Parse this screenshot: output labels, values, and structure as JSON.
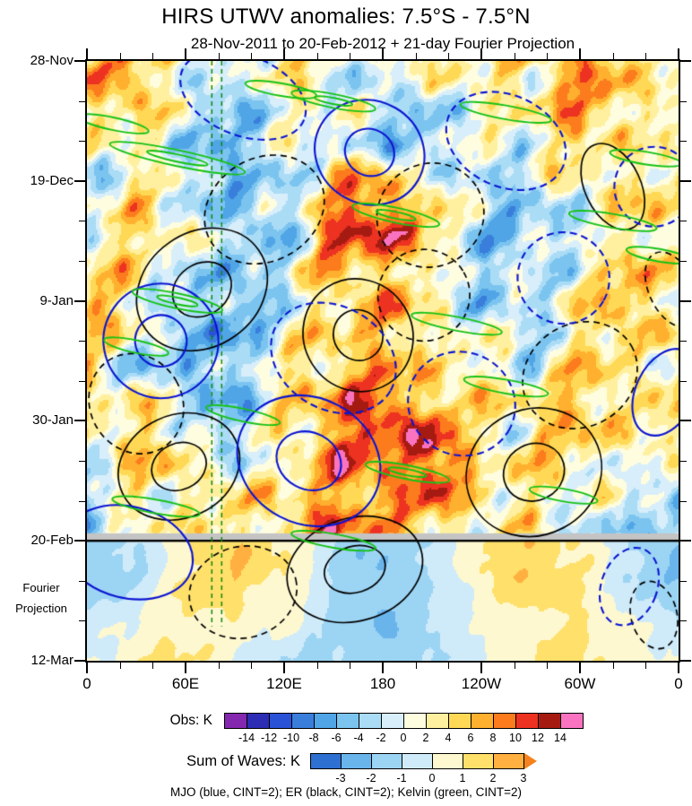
{
  "title": "HIRS UTWV anomalies: 7.5°S - 7.5°N",
  "subtitle": "28-Nov-2011 to 20-Feb-2012 + 21-day Fourier Projection",
  "caption": "MJO (blue, CINT=2); ER (black, CINT=2); Kelvin (green, CINT=2)",
  "axes": {
    "x": {
      "range_deg": [
        0,
        360
      ],
      "major_ticks": [
        {
          "deg": 0,
          "label": "0"
        },
        {
          "deg": 60,
          "label": "60E"
        },
        {
          "deg": 120,
          "label": "120E"
        },
        {
          "deg": 180,
          "label": "180"
        },
        {
          "deg": 240,
          "label": "120W"
        },
        {
          "deg": 300,
          "label": "60W"
        },
        {
          "deg": 360,
          "label": "0"
        }
      ],
      "minor_step_deg": 20
    },
    "y": {
      "range_days": [
        0,
        105
      ],
      "major_ticks": [
        {
          "day": 0,
          "label": "28-Nov"
        },
        {
          "day": 21,
          "label": "19-Dec"
        },
        {
          "day": 42,
          "label": "9-Jan"
        },
        {
          "day": 63,
          "label": "30-Jan"
        },
        {
          "day": 84,
          "label": "20-Feb"
        },
        {
          "day": 105,
          "label": "12-Mar"
        }
      ],
      "minor_step_days": 7,
      "side_note": [
        "Fourier",
        "Projection"
      ]
    }
  },
  "colorbars": [
    {
      "label": "Obs: K",
      "tick_values": [
        -14,
        -12,
        -10,
        -8,
        -6,
        -4,
        -2,
        0,
        2,
        4,
        6,
        8,
        10,
        12,
        14
      ],
      "colors": [
        "#8428b0",
        "#2c2cb4",
        "#2a52d6",
        "#3a7edc",
        "#50a5e6",
        "#7cc4f0",
        "#aadcf6",
        "#d8eefa",
        "#fffde0",
        "#fff0a0",
        "#ffd955",
        "#ffb02e",
        "#fb7b1d",
        "#ed3221",
        "#a51b12",
        "#f973c0"
      ],
      "right_arrow": false
    },
    {
      "label": "Sum of Waves: K",
      "tick_values": [
        -3,
        -2,
        -1,
        0,
        1,
        2,
        3
      ],
      "colors": [
        "#2e6fd2",
        "#6ab4ec",
        "#9cd4f4",
        "#cfebfa",
        "#fef8d0",
        "#ffe06a",
        "#ffb040",
        "#f5821e"
      ],
      "right_arrow": true
    }
  ],
  "chart_data": {
    "type": "heatmap",
    "units": "K",
    "lon_grid_deg": [
      0,
      30,
      60,
      90,
      120,
      150,
      180,
      210,
      240,
      270,
      300,
      330,
      360
    ],
    "day_grid": [
      0,
      7.5,
      15,
      22.5,
      30,
      37.5,
      45,
      52.5,
      60,
      67.5,
      75,
      82.5,
      90,
      97.5,
      105
    ],
    "anomaly_grid_K": [
      [
        4,
        8,
        0,
        -1,
        3,
        1,
        -1,
        4,
        2,
        5,
        7,
        4,
        2
      ],
      [
        3,
        8,
        -2,
        -4,
        1,
        2,
        -4,
        -2,
        1,
        3,
        8,
        5,
        3
      ],
      [
        1,
        2,
        -3,
        -5,
        -2,
        2,
        -5,
        -3,
        -1,
        2,
        4,
        2,
        1
      ],
      [
        -2,
        3,
        -1,
        -6,
        -3,
        6,
        9,
        2,
        -2,
        -4,
        2,
        5,
        2
      ],
      [
        2,
        5,
        2,
        -4,
        -4,
        10,
        13,
        5,
        -3,
        -5,
        -2,
        3,
        2
      ],
      [
        4,
        2,
        -2,
        -5,
        -1,
        5,
        6,
        1,
        -4,
        -2,
        2,
        6,
        3
      ],
      [
        6,
        4,
        -5,
        -6,
        -2,
        4,
        7,
        3,
        -2,
        -3,
        3,
        6,
        4
      ],
      [
        2,
        -2,
        -6,
        -4,
        2,
        6,
        5,
        4,
        2,
        -2,
        4,
        3,
        2
      ],
      [
        3,
        4,
        -3,
        -5,
        3,
        8,
        11,
        6,
        3,
        4,
        6,
        4,
        3
      ],
      [
        2,
        5,
        3,
        -4,
        2,
        9,
        10,
        13,
        2,
        3,
        5,
        2,
        2
      ],
      [
        -2,
        2,
        4,
        2,
        4,
        7,
        8,
        9,
        5,
        3,
        2,
        -2,
        -2
      ],
      [
        -3,
        1,
        2,
        3,
        6,
        9,
        8,
        4,
        2,
        1,
        -2,
        -3,
        -3
      ],
      [
        -2,
        -1,
        1,
        2,
        1,
        -1,
        -2,
        -1,
        1,
        2,
        1,
        -1,
        -2
      ],
      [
        -1,
        0,
        1,
        1,
        0,
        -1,
        -2,
        -1,
        0,
        1,
        1,
        0,
        -1
      ],
      [
        0,
        1,
        1,
        0,
        -1,
        -1,
        -2,
        -1,
        0,
        1,
        1,
        1,
        0
      ]
    ],
    "projection_start_day": 84,
    "gray_band_days": [
      82.7,
      84
    ],
    "kelvin_filter_lines_deg": [
      76,
      82
    ],
    "noise_texture": {
      "obs_amplitude_K": 3.3,
      "projection_amplitude_K": 0.3
    },
    "colors": {
      "mjo": "#0a14d2",
      "er": "#000000",
      "kelvin": "#16c216",
      "gray_band": "#c4c4c4",
      "filter_line_green": "#0c870c"
    },
    "overlays": {
      "mjo_blue": [
        {
          "lon": 172,
          "day": 16,
          "rlon": 34,
          "rday": 9,
          "angle": 30,
          "dashed": false,
          "double": true
        },
        {
          "lon": 95,
          "day": 6,
          "rlon": 40,
          "rday": 7,
          "angle": 22,
          "dashed": true,
          "double": false
        },
        {
          "lon": 255,
          "day": 14,
          "rlon": 38,
          "rday": 8,
          "angle": 25,
          "dashed": true,
          "double": false
        },
        {
          "lon": 345,
          "day": 22,
          "rlon": 24,
          "rday": 7,
          "angle": 25,
          "dashed": true,
          "double": false
        },
        {
          "lon": 45,
          "day": 49,
          "rlon": 35,
          "rday": 10,
          "angle": 30,
          "dashed": false,
          "double": true
        },
        {
          "lon": 150,
          "day": 52,
          "rlon": 40,
          "rday": 9,
          "angle": 30,
          "dashed": true,
          "double": false
        },
        {
          "lon": 135,
          "day": 70,
          "rlon": 45,
          "rday": 11,
          "angle": 28,
          "dashed": false,
          "double": true
        },
        {
          "lon": 228,
          "day": 60,
          "rlon": 33,
          "rday": 9,
          "angle": 28,
          "dashed": true,
          "double": false
        },
        {
          "lon": 25,
          "day": 86,
          "rlon": 40,
          "rday": 8,
          "angle": 14,
          "dashed": false,
          "double": false
        },
        {
          "lon": 330,
          "day": 92,
          "rlon": 17,
          "rday": 7,
          "angle": 20,
          "dashed": true,
          "double": false
        },
        {
          "lon": 290,
          "day": 38,
          "rlon": 28,
          "rday": 8,
          "angle": 30,
          "dashed": true,
          "double": false
        },
        {
          "lon": 352,
          "day": 58,
          "rlon": 18,
          "rday": 8,
          "angle": 25,
          "dashed": false,
          "double": false
        }
      ],
      "er_black": [
        {
          "lon": 108,
          "day": 26,
          "rlon": 38,
          "rday": 9,
          "angle": -30,
          "dashed": true,
          "double": false
        },
        {
          "lon": 209,
          "day": 27,
          "rlon": 33,
          "rday": 9,
          "angle": -30,
          "dashed": true,
          "double": false
        },
        {
          "lon": 70,
          "day": 40,
          "rlon": 42,
          "rday": 10,
          "angle": -35,
          "dashed": false,
          "double": true
        },
        {
          "lon": 30,
          "day": 60,
          "rlon": 28,
          "rday": 9,
          "angle": -30,
          "dashed": true,
          "double": false
        },
        {
          "lon": 56,
          "day": 71,
          "rlon": 38,
          "rday": 9,
          "angle": -25,
          "dashed": false,
          "double": true
        },
        {
          "lon": 165,
          "day": 48,
          "rlon": 33,
          "rday": 10,
          "angle": -32,
          "dashed": false,
          "double": true
        },
        {
          "lon": 205,
          "day": 41,
          "rlon": 28,
          "rday": 8,
          "angle": -30,
          "dashed": true,
          "double": false
        },
        {
          "lon": 272,
          "day": 72,
          "rlon": 42,
          "rday": 11,
          "angle": -28,
          "dashed": false,
          "double": true
        },
        {
          "lon": 300,
          "day": 55,
          "rlon": 36,
          "rday": 9,
          "angle": -30,
          "dashed": true,
          "double": false
        },
        {
          "lon": 163,
          "day": 89,
          "rlon": 42,
          "rday": 9,
          "angle": -17,
          "dashed": false,
          "double": true
        },
        {
          "lon": 95,
          "day": 93,
          "rlon": 33,
          "rday": 8,
          "angle": -14,
          "dashed": true,
          "double": false
        },
        {
          "lon": 345,
          "day": 97,
          "rlon": 14,
          "rday": 6,
          "angle": -14,
          "dashed": true,
          "double": false
        },
        {
          "lon": 320,
          "day": 22,
          "rlon": 17,
          "rday": 8,
          "angle": -25,
          "dashed": false,
          "double": false
        },
        {
          "lon": 356,
          "day": 40,
          "rlon": 14,
          "rday": 7,
          "angle": -25,
          "dashed": true,
          "double": false
        }
      ],
      "kelvin_green": [
        {
          "lon": 55,
          "day": 17,
          "rlon": 42,
          "rday": 1.4,
          "angle": 12,
          "dashed": false,
          "double": true
        },
        {
          "lon": 16,
          "day": 11,
          "rlon": 22,
          "rday": 1.1,
          "angle": 12,
          "dashed": false,
          "double": false
        },
        {
          "lon": 118,
          "day": 5,
          "rlon": 22,
          "rday": 1.1,
          "angle": 10,
          "dashed": false,
          "double": false
        },
        {
          "lon": 150,
          "day": 7,
          "rlon": 26,
          "rday": 1.2,
          "angle": 11,
          "dashed": false,
          "double": true
        },
        {
          "lon": 255,
          "day": 9,
          "rlon": 28,
          "rday": 1.2,
          "angle": 10,
          "dashed": false,
          "double": false
        },
        {
          "lon": 340,
          "day": 17,
          "rlon": 22,
          "rday": 1.1,
          "angle": 9,
          "dashed": false,
          "double": false
        },
        {
          "lon": 188,
          "day": 27,
          "rlon": 27,
          "rday": 1.3,
          "angle": 12,
          "dashed": false,
          "double": true
        },
        {
          "lon": 320,
          "day": 28,
          "rlon": 27,
          "rday": 1.2,
          "angle": 10,
          "dashed": false,
          "double": false
        },
        {
          "lon": 348,
          "day": 34,
          "rlon": 20,
          "rday": 1.1,
          "angle": 10,
          "dashed": false,
          "double": false
        },
        {
          "lon": 55,
          "day": 42,
          "rlon": 28,
          "rday": 1.3,
          "angle": 12,
          "dashed": false,
          "double": true
        },
        {
          "lon": 30,
          "day": 50,
          "rlon": 20,
          "rday": 1.1,
          "angle": 12,
          "dashed": false,
          "double": false
        },
        {
          "lon": 225,
          "day": 46,
          "rlon": 28,
          "rday": 1.2,
          "angle": 11,
          "dashed": false,
          "double": false
        },
        {
          "lon": 255,
          "day": 57,
          "rlon": 26,
          "rday": 1.2,
          "angle": 10,
          "dashed": false,
          "double": false
        },
        {
          "lon": 95,
          "day": 62,
          "rlon": 23,
          "rday": 1.1,
          "angle": 12,
          "dashed": false,
          "double": false
        },
        {
          "lon": 195,
          "day": 72,
          "rlon": 26,
          "rday": 1.2,
          "angle": 11,
          "dashed": false,
          "double": true
        },
        {
          "lon": 290,
          "day": 76,
          "rlon": 21,
          "rday": 1.1,
          "angle": 10,
          "dashed": false,
          "double": false
        },
        {
          "lon": 42,
          "day": 78,
          "rlon": 27,
          "rday": 1.2,
          "angle": 10,
          "dashed": false,
          "double": false
        },
        {
          "lon": 150,
          "day": 84,
          "rlon": 26,
          "rday": 1.2,
          "angle": 10,
          "dashed": false,
          "double": false
        }
      ]
    }
  }
}
